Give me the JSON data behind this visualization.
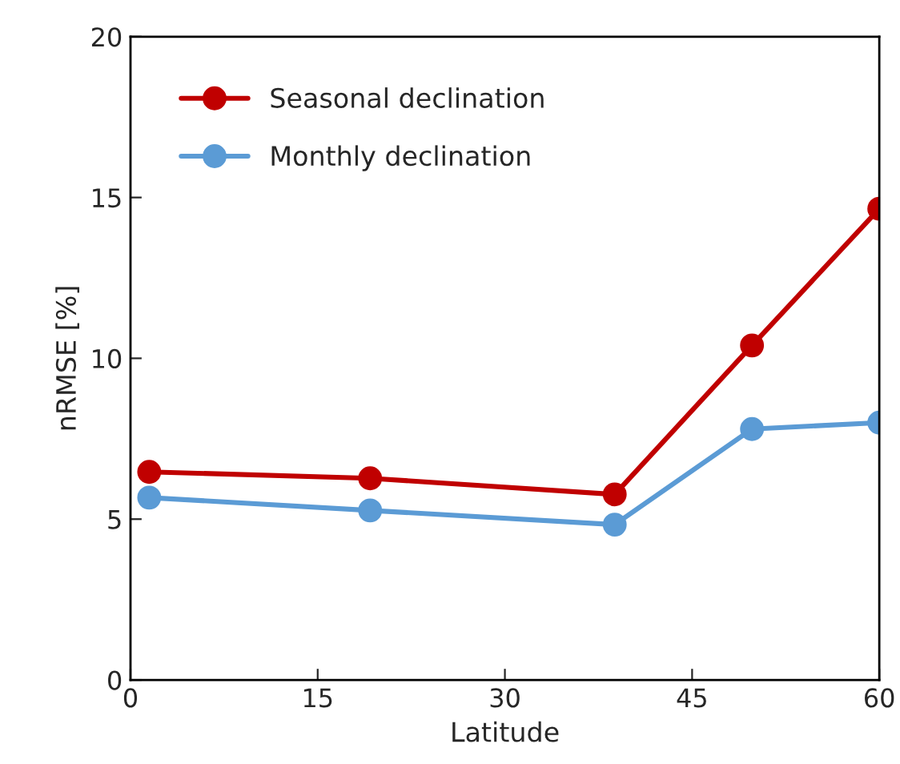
{
  "chart_data": {
    "type": "line",
    "xlabel": "Latitude",
    "ylabel": "nRMSE [%]",
    "x": [
      1.5,
      19.2,
      38.8,
      49.8,
      60
    ],
    "series": [
      {
        "name": "Seasonal declination",
        "color": "#c00000",
        "values": [
          6.47,
          6.27,
          5.77,
          10.4,
          14.65
        ]
      },
      {
        "name": "Monthly declination",
        "color": "#5b9bd5",
        "values": [
          5.67,
          5.27,
          4.83,
          7.8,
          8.0
        ]
      }
    ],
    "xlim": [
      0,
      60
    ],
    "xticks": [
      0,
      15,
      30,
      45,
      60
    ],
    "ylim": [
      0,
      20
    ],
    "yticks": [
      0,
      5,
      10,
      15,
      20
    ],
    "grid": false,
    "legend": "top left",
    "marker": "circle",
    "line_style": "solid"
  }
}
